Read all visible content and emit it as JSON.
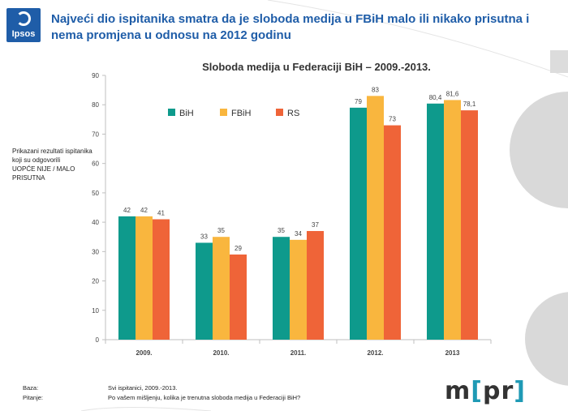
{
  "logo": {
    "text": "Ipsos"
  },
  "headline": "Najveći dio ispitanika smatra da je sloboda medija u FBiH malo ili nikako prisutna i nema promjena u odnosu na 2012 godinu",
  "side_note": {
    "line1": "Prikazani rezultati ispitanika koji su odgovorili",
    "line2": "UOPĆE NIJE / MALO PRISUTNA"
  },
  "footer": {
    "base_label": "Baza:",
    "base_value": "Svi ispitanici, 2009.-2013.",
    "question_label": "Pitanje:",
    "question_value": "Po vašem mišljenju, kolika je trenutna sloboda medija u Federaciji BiH?"
  },
  "brand": {
    "m": "m",
    "lb": "[",
    "pr": "pr",
    "rb": "]"
  },
  "colors": {
    "accent": "#1f5da8",
    "BiH": "#0e9a8c",
    "FBiH": "#f9b63e",
    "RS": "#ef6438"
  },
  "chart_data": {
    "type": "bar",
    "title": "Sloboda medija u Federaciji BiH – 2009.-2013.",
    "categories": [
      "2009.",
      "2010.",
      "2011.",
      "2012.",
      "2013"
    ],
    "series": [
      {
        "name": "BiH",
        "values": [
          42,
          33,
          35,
          79,
          80.4
        ],
        "labels": [
          "42",
          "33",
          "35",
          "79",
          "80,4"
        ]
      },
      {
        "name": "FBiH",
        "values": [
          42,
          35,
          34,
          83,
          81.6
        ],
        "labels": [
          "42",
          "35",
          "34",
          "83",
          "81,6"
        ]
      },
      {
        "name": "RS",
        "values": [
          41,
          29,
          37,
          73,
          78.1
        ],
        "labels": [
          "41",
          "29",
          "37",
          "73",
          "78,1"
        ]
      }
    ],
    "ylim": [
      0,
      90
    ],
    "yticks": [
      0,
      10,
      20,
      30,
      40,
      50,
      60,
      70,
      80,
      90
    ],
    "grid": false,
    "legend": "top-left",
    "xlabel": "",
    "ylabel": ""
  }
}
